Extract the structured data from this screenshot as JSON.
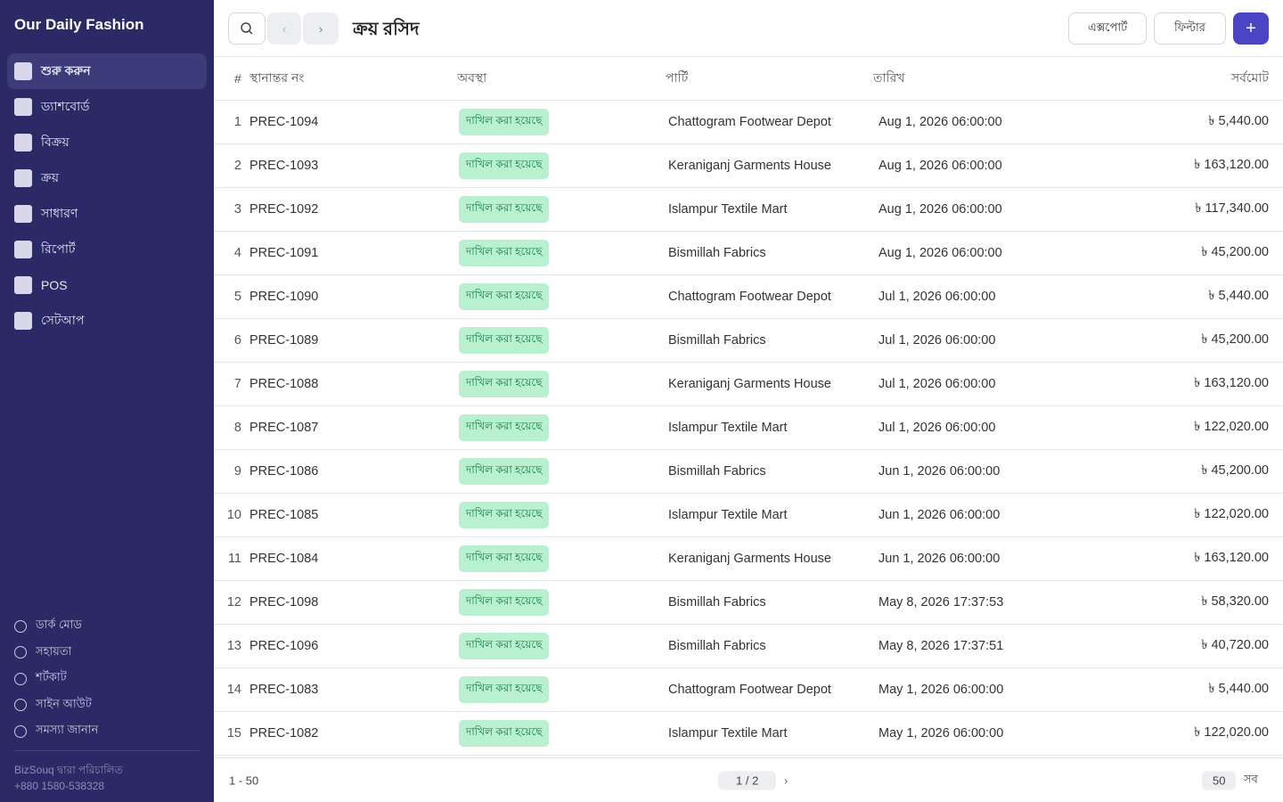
{
  "sidebar": {
    "brand": "Our Daily Fashion",
    "nav": [
      "শুরু করুন",
      "ড্যাশবোর্ড",
      "বিক্রয়",
      "ক্রয়",
      "সাধারণ",
      "রিপোর্ট",
      "POS",
      "সেটআপ"
    ],
    "links": [
      "ডার্ক মোড",
      "সহায়তা",
      "শর্টকাট",
      "সাইন আউট",
      "সমস্যা জানান"
    ],
    "powered_by": "BizSouq দ্বারা পরিচালিত",
    "phone": "+880 1580-538328"
  },
  "header": {
    "title": "ক্রয় রসিদ",
    "export": "এক্সপোর্ট",
    "filter": "ফিল্টার"
  },
  "table": {
    "columns": [
      "#",
      "স্থানান্তর নং",
      "অবস্থা",
      "পার্টি",
      "তারিখ",
      "সর্বমোট"
    ],
    "rows": [
      {
        "no": 1,
        "id": "PREC-1094",
        "status": "দাখিল করা হয়েছে",
        "party": "Chattogram Footwear Depot",
        "date": "Aug 1, 2026 06:00:00",
        "total": "৳ 5,440.00"
      },
      {
        "no": 2,
        "id": "PREC-1093",
        "status": "দাখিল করা হয়েছে",
        "party": "Keraniganj Garments House",
        "date": "Aug 1, 2026 06:00:00",
        "total": "৳ 163,120.00"
      },
      {
        "no": 3,
        "id": "PREC-1092",
        "status": "দাখিল করা হয়েছে",
        "party": "Islampur Textile Mart",
        "date": "Aug 1, 2026 06:00:00",
        "total": "৳ 117,340.00"
      },
      {
        "no": 4,
        "id": "PREC-1091",
        "status": "দাখিল করা হয়েছে",
        "party": "Bismillah Fabrics",
        "date": "Aug 1, 2026 06:00:00",
        "total": "৳ 45,200.00"
      },
      {
        "no": 5,
        "id": "PREC-1090",
        "status": "দাখিল করা হয়েছে",
        "party": "Chattogram Footwear Depot",
        "date": "Jul 1, 2026 06:00:00",
        "total": "৳ 5,440.00"
      },
      {
        "no": 6,
        "id": "PREC-1089",
        "status": "দাখিল করা হয়েছে",
        "party": "Bismillah Fabrics",
        "date": "Jul 1, 2026 06:00:00",
        "total": "৳ 45,200.00"
      },
      {
        "no": 7,
        "id": "PREC-1088",
        "status": "দাখিল করা হয়েছে",
        "party": "Keraniganj Garments House",
        "date": "Jul 1, 2026 06:00:00",
        "total": "৳ 163,120.00"
      },
      {
        "no": 8,
        "id": "PREC-1087",
        "status": "দাখিল করা হয়েছে",
        "party": "Islampur Textile Mart",
        "date": "Jul 1, 2026 06:00:00",
        "total": "৳ 122,020.00"
      },
      {
        "no": 9,
        "id": "PREC-1086",
        "status": "দাখিল করা হয়েছে",
        "party": "Bismillah Fabrics",
        "date": "Jun 1, 2026 06:00:00",
        "total": "৳ 45,200.00"
      },
      {
        "no": 10,
        "id": "PREC-1085",
        "status": "দাখিল করা হয়েছে",
        "party": "Islampur Textile Mart",
        "date": "Jun 1, 2026 06:00:00",
        "total": "৳ 122,020.00"
      },
      {
        "no": 11,
        "id": "PREC-1084",
        "status": "দাখিল করা হয়েছে",
        "party": "Keraniganj Garments House",
        "date": "Jun 1, 2026 06:00:00",
        "total": "৳ 163,120.00"
      },
      {
        "no": 12,
        "id": "PREC-1098",
        "status": "দাখিল করা হয়েছে",
        "party": "Bismillah Fabrics",
        "date": "May 8, 2026 17:37:53",
        "total": "৳ 58,320.00"
      },
      {
        "no": 13,
        "id": "PREC-1096",
        "status": "দাখিল করা হয়েছে",
        "party": "Bismillah Fabrics",
        "date": "May 8, 2026 17:37:51",
        "total": "৳ 40,720.00"
      },
      {
        "no": 14,
        "id": "PREC-1083",
        "status": "দাখিল করা হয়েছে",
        "party": "Chattogram Footwear Depot",
        "date": "May 1, 2026 06:00:00",
        "total": "৳ 5,440.00"
      },
      {
        "no": 15,
        "id": "PREC-1082",
        "status": "দাখিল করা হয়েছে",
        "party": "Islampur Textile Mart",
        "date": "May 1, 2026 06:00:00",
        "total": "৳ 122,020.00"
      }
    ]
  },
  "pagination": {
    "range": "1 - 50",
    "page": "1 / 2",
    "page_size": "50",
    "all": "সব"
  }
}
